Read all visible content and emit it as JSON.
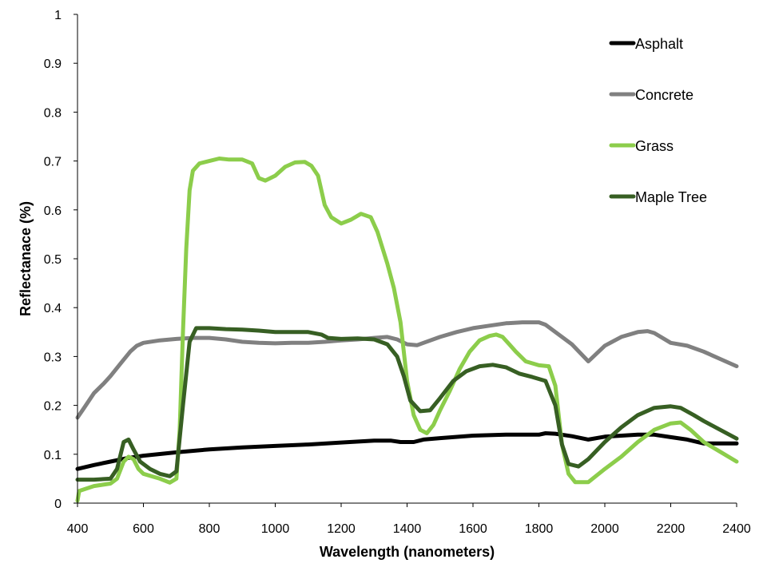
{
  "chart_data": {
    "type": "line",
    "title": "",
    "xlabel": "Wavelength (nanometers)",
    "ylabel": "Reflectanace (%)",
    "xlim": [
      400,
      2400
    ],
    "ylim": [
      0,
      1
    ],
    "x_ticks": [
      400,
      600,
      800,
      1000,
      1200,
      1400,
      1600,
      1800,
      2000,
      2200,
      2400
    ],
    "y_ticks": [
      0,
      0.1,
      0.2,
      0.3,
      0.4,
      0.5,
      0.6,
      0.7,
      0.8,
      0.9,
      1
    ],
    "y_tick_labels": [
      "0",
      "0.1",
      "0.2",
      "0.3",
      "0.4",
      "0.5",
      "0.6",
      "0.7",
      "0.8",
      "0.9",
      "1"
    ],
    "grid": false,
    "legend_position": "top-right",
    "series": [
      {
        "name": "Asphalt",
        "color": "#000000",
        "points": [
          [
            400,
            0.07
          ],
          [
            450,
            0.078
          ],
          [
            500,
            0.085
          ],
          [
            550,
            0.092
          ],
          [
            600,
            0.097
          ],
          [
            700,
            0.104
          ],
          [
            800,
            0.11
          ],
          [
            900,
            0.114
          ],
          [
            1000,
            0.117
          ],
          [
            1100,
            0.12
          ],
          [
            1200,
            0.124
          ],
          [
            1300,
            0.128
          ],
          [
            1350,
            0.128
          ],
          [
            1380,
            0.125
          ],
          [
            1420,
            0.125
          ],
          [
            1450,
            0.13
          ],
          [
            1500,
            0.133
          ],
          [
            1600,
            0.138
          ],
          [
            1700,
            0.14
          ],
          [
            1800,
            0.14
          ],
          [
            1820,
            0.143
          ],
          [
            1850,
            0.142
          ],
          [
            1900,
            0.137
          ],
          [
            1950,
            0.13
          ],
          [
            2000,
            0.136
          ],
          [
            2100,
            0.14
          ],
          [
            2150,
            0.14
          ],
          [
            2200,
            0.135
          ],
          [
            2250,
            0.13
          ],
          [
            2300,
            0.122
          ],
          [
            2350,
            0.122
          ],
          [
            2400,
            0.122
          ]
        ]
      },
      {
        "name": "Concrete",
        "color": "#808080",
        "points": [
          [
            400,
            0.175
          ],
          [
            420,
            0.195
          ],
          [
            450,
            0.225
          ],
          [
            480,
            0.245
          ],
          [
            500,
            0.26
          ],
          [
            530,
            0.285
          ],
          [
            560,
            0.31
          ],
          [
            580,
            0.322
          ],
          [
            600,
            0.328
          ],
          [
            650,
            0.333
          ],
          [
            700,
            0.336
          ],
          [
            750,
            0.338
          ],
          [
            800,
            0.338
          ],
          [
            850,
            0.335
          ],
          [
            900,
            0.33
          ],
          [
            950,
            0.328
          ],
          [
            1000,
            0.327
          ],
          [
            1050,
            0.328
          ],
          [
            1100,
            0.328
          ],
          [
            1150,
            0.33
          ],
          [
            1200,
            0.333
          ],
          [
            1250,
            0.335
          ],
          [
            1300,
            0.338
          ],
          [
            1340,
            0.34
          ],
          [
            1370,
            0.335
          ],
          [
            1400,
            0.325
          ],
          [
            1430,
            0.323
          ],
          [
            1450,
            0.328
          ],
          [
            1500,
            0.34
          ],
          [
            1550,
            0.35
          ],
          [
            1600,
            0.358
          ],
          [
            1650,
            0.363
          ],
          [
            1700,
            0.368
          ],
          [
            1750,
            0.37
          ],
          [
            1800,
            0.37
          ],
          [
            1820,
            0.365
          ],
          [
            1850,
            0.35
          ],
          [
            1900,
            0.325
          ],
          [
            1950,
            0.29
          ],
          [
            2000,
            0.322
          ],
          [
            2050,
            0.34
          ],
          [
            2100,
            0.35
          ],
          [
            2130,
            0.352
          ],
          [
            2150,
            0.348
          ],
          [
            2200,
            0.328
          ],
          [
            2250,
            0.322
          ],
          [
            2300,
            0.31
          ],
          [
            2350,
            0.295
          ],
          [
            2400,
            0.28
          ]
        ]
      },
      {
        "name": "Grass",
        "color": "#8ccd4b",
        "points": [
          [
            400,
            0.005
          ],
          [
            405,
            0.025
          ],
          [
            450,
            0.035
          ],
          [
            500,
            0.04
          ],
          [
            520,
            0.05
          ],
          [
            540,
            0.085
          ],
          [
            555,
            0.095
          ],
          [
            570,
            0.09
          ],
          [
            585,
            0.07
          ],
          [
            600,
            0.06
          ],
          [
            650,
            0.05
          ],
          [
            680,
            0.042
          ],
          [
            700,
            0.05
          ],
          [
            710,
            0.15
          ],
          [
            720,
            0.35
          ],
          [
            730,
            0.52
          ],
          [
            740,
            0.64
          ],
          [
            750,
            0.68
          ],
          [
            770,
            0.695
          ],
          [
            800,
            0.7
          ],
          [
            830,
            0.705
          ],
          [
            860,
            0.703
          ],
          [
            900,
            0.703
          ],
          [
            930,
            0.695
          ],
          [
            950,
            0.665
          ],
          [
            970,
            0.66
          ],
          [
            1000,
            0.67
          ],
          [
            1030,
            0.688
          ],
          [
            1060,
            0.697
          ],
          [
            1090,
            0.698
          ],
          [
            1110,
            0.69
          ],
          [
            1130,
            0.67
          ],
          [
            1150,
            0.61
          ],
          [
            1170,
            0.585
          ],
          [
            1200,
            0.572
          ],
          [
            1230,
            0.58
          ],
          [
            1260,
            0.592
          ],
          [
            1290,
            0.585
          ],
          [
            1310,
            0.555
          ],
          [
            1340,
            0.49
          ],
          [
            1360,
            0.44
          ],
          [
            1380,
            0.37
          ],
          [
            1400,
            0.25
          ],
          [
            1420,
            0.18
          ],
          [
            1440,
            0.15
          ],
          [
            1460,
            0.143
          ],
          [
            1480,
            0.16
          ],
          [
            1500,
            0.19
          ],
          [
            1530,
            0.23
          ],
          [
            1560,
            0.275
          ],
          [
            1590,
            0.31
          ],
          [
            1620,
            0.333
          ],
          [
            1650,
            0.342
          ],
          [
            1670,
            0.345
          ],
          [
            1690,
            0.34
          ],
          [
            1710,
            0.325
          ],
          [
            1730,
            0.31
          ],
          [
            1760,
            0.29
          ],
          [
            1800,
            0.282
          ],
          [
            1830,
            0.28
          ],
          [
            1850,
            0.24
          ],
          [
            1870,
            0.12
          ],
          [
            1890,
            0.06
          ],
          [
            1910,
            0.043
          ],
          [
            1950,
            0.043
          ],
          [
            2000,
            0.07
          ],
          [
            2050,
            0.095
          ],
          [
            2100,
            0.125
          ],
          [
            2150,
            0.15
          ],
          [
            2200,
            0.163
          ],
          [
            2230,
            0.165
          ],
          [
            2260,
            0.15
          ],
          [
            2300,
            0.125
          ],
          [
            2350,
            0.105
          ],
          [
            2400,
            0.085
          ]
        ]
      },
      {
        "name": "Maple Tree",
        "color": "#375f23",
        "points": [
          [
            400,
            0.048
          ],
          [
            450,
            0.048
          ],
          [
            500,
            0.05
          ],
          [
            520,
            0.07
          ],
          [
            540,
            0.125
          ],
          [
            555,
            0.13
          ],
          [
            570,
            0.11
          ],
          [
            590,
            0.085
          ],
          [
            620,
            0.07
          ],
          [
            650,
            0.06
          ],
          [
            680,
            0.055
          ],
          [
            700,
            0.065
          ],
          [
            720,
            0.2
          ],
          [
            740,
            0.33
          ],
          [
            760,
            0.358
          ],
          [
            800,
            0.358
          ],
          [
            850,
            0.356
          ],
          [
            900,
            0.355
          ],
          [
            950,
            0.353
          ],
          [
            1000,
            0.35
          ],
          [
            1050,
            0.35
          ],
          [
            1100,
            0.35
          ],
          [
            1140,
            0.345
          ],
          [
            1160,
            0.338
          ],
          [
            1200,
            0.336
          ],
          [
            1250,
            0.337
          ],
          [
            1300,
            0.335
          ],
          [
            1340,
            0.325
          ],
          [
            1370,
            0.3
          ],
          [
            1390,
            0.26
          ],
          [
            1410,
            0.21
          ],
          [
            1440,
            0.188
          ],
          [
            1470,
            0.19
          ],
          [
            1500,
            0.215
          ],
          [
            1540,
            0.25
          ],
          [
            1580,
            0.27
          ],
          [
            1620,
            0.28
          ],
          [
            1660,
            0.283
          ],
          [
            1700,
            0.278
          ],
          [
            1740,
            0.265
          ],
          [
            1780,
            0.258
          ],
          [
            1820,
            0.25
          ],
          [
            1850,
            0.2
          ],
          [
            1870,
            0.12
          ],
          [
            1890,
            0.08
          ],
          [
            1920,
            0.075
          ],
          [
            1950,
            0.09
          ],
          [
            2000,
            0.125
          ],
          [
            2050,
            0.155
          ],
          [
            2100,
            0.18
          ],
          [
            2150,
            0.195
          ],
          [
            2200,
            0.198
          ],
          [
            2230,
            0.195
          ],
          [
            2270,
            0.18
          ],
          [
            2300,
            0.168
          ],
          [
            2350,
            0.15
          ],
          [
            2400,
            0.132
          ]
        ]
      }
    ]
  }
}
